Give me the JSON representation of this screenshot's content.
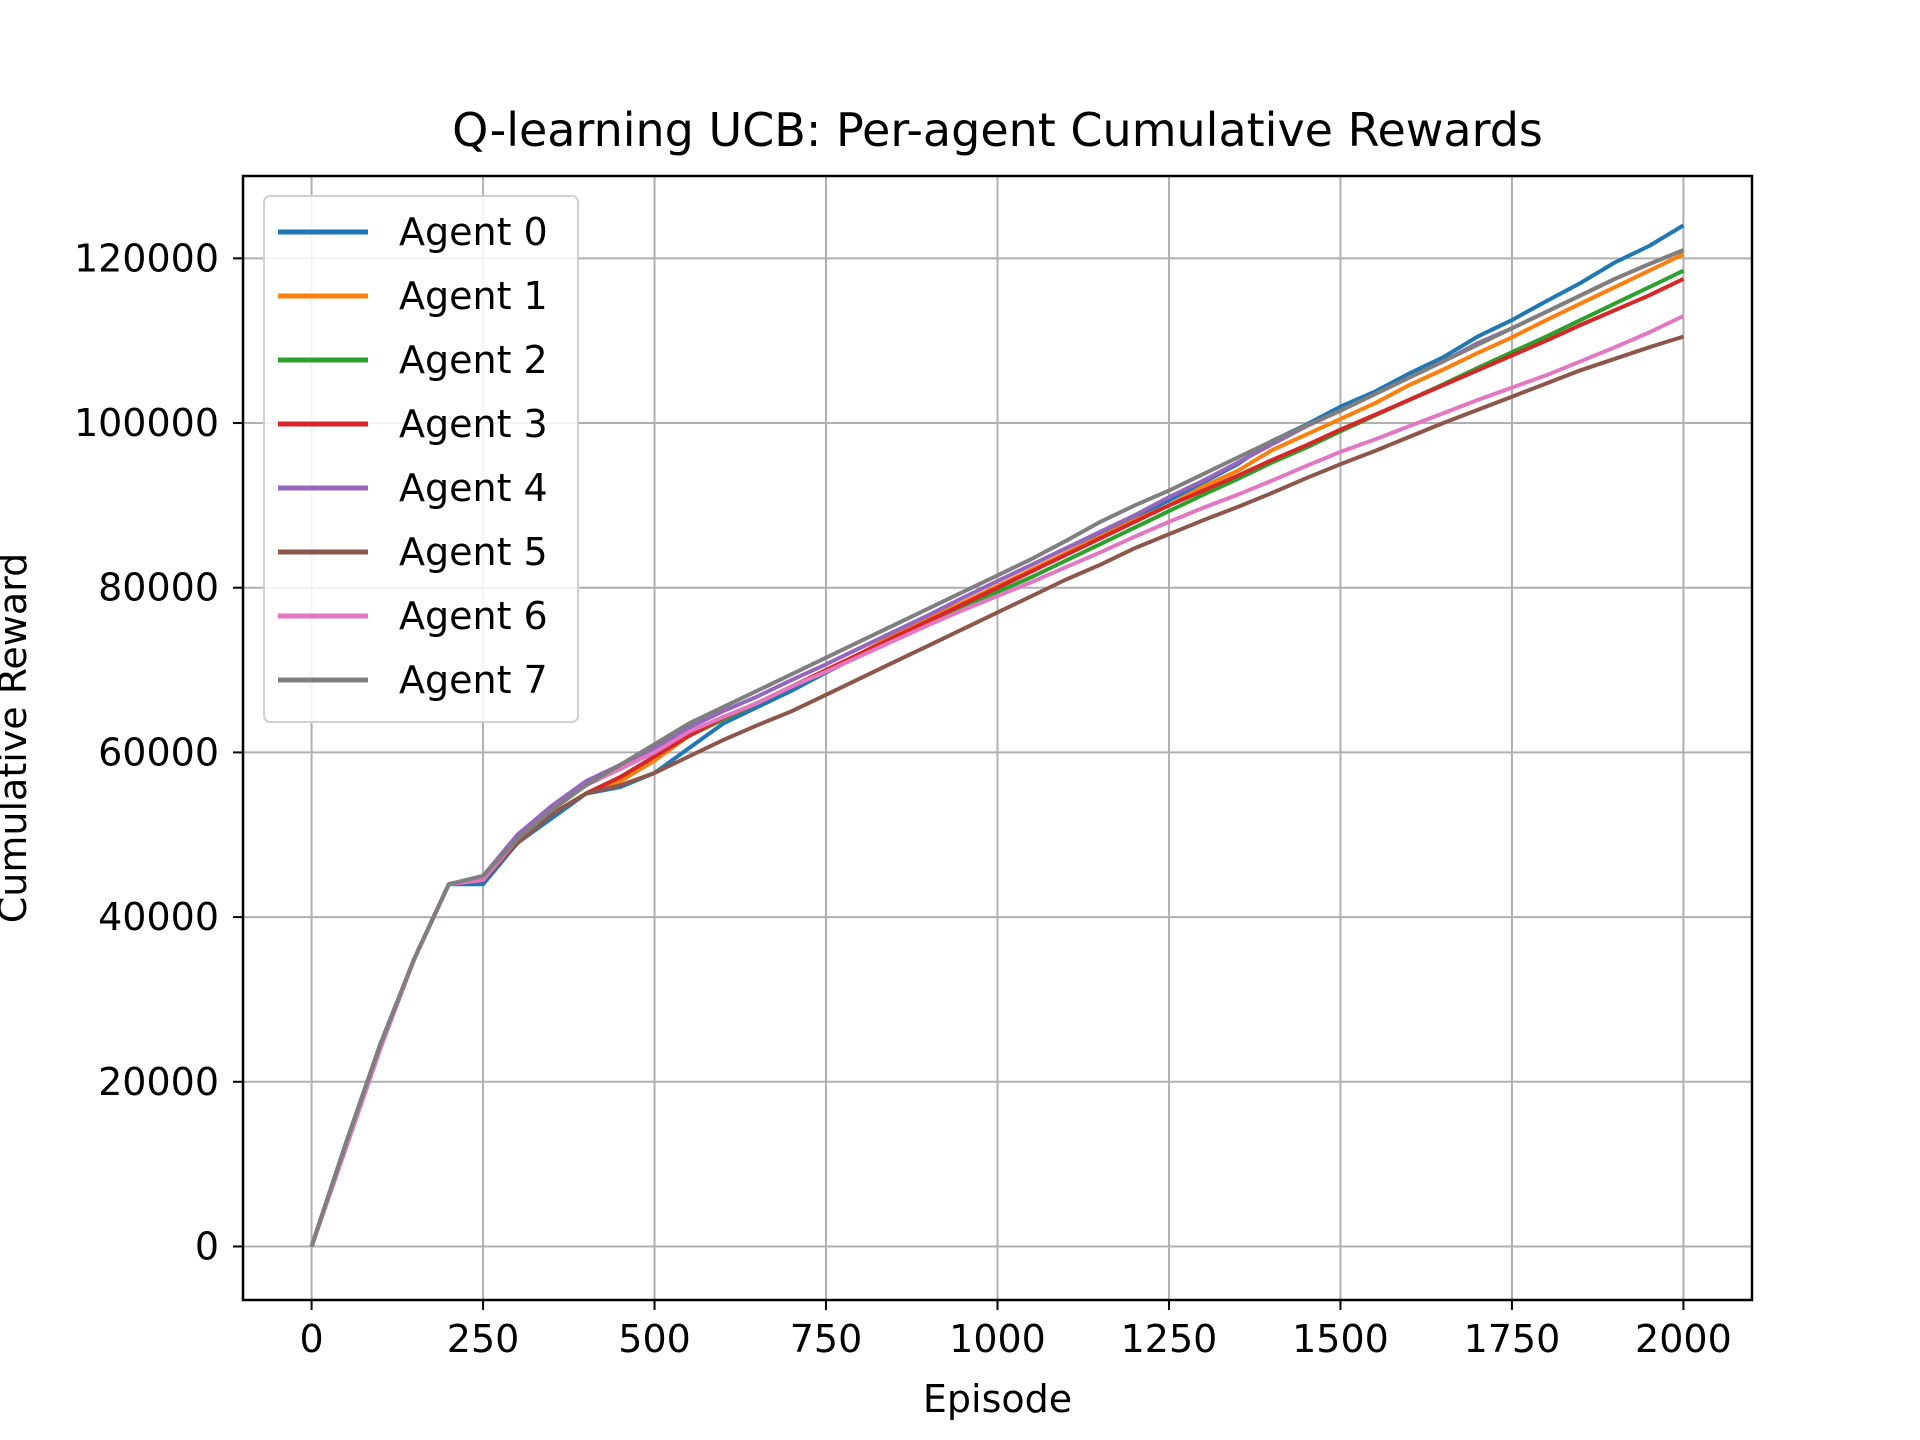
{
  "chart_data": {
    "type": "line",
    "title": "Q-learning UCB: Per-agent Cumulative Rewards",
    "xlabel": "Episode",
    "ylabel": "Cumulative Reward",
    "xlim": [
      -100,
      2100
    ],
    "ylim": [
      -6500,
      130000
    ],
    "x_ticks": [
      0,
      250,
      500,
      750,
      1000,
      1250,
      1500,
      1750,
      2000
    ],
    "x_tick_labels": [
      "0",
      "250",
      "500",
      "750",
      "1000",
      "1250",
      "1500",
      "1750",
      "2000"
    ],
    "y_ticks": [
      0,
      20000,
      40000,
      60000,
      80000,
      100000,
      120000
    ],
    "y_tick_labels": [
      "0",
      "20000",
      "40000",
      "60000",
      "80000",
      "100000",
      "120000"
    ],
    "grid": true,
    "legend_position": "top-left",
    "x": [
      0,
      50,
      100,
      150,
      200,
      250,
      300,
      350,
      400,
      450,
      500,
      550,
      600,
      650,
      700,
      750,
      800,
      850,
      900,
      950,
      1000,
      1050,
      1100,
      1150,
      1200,
      1250,
      1300,
      1350,
      1400,
      1450,
      1500,
      1550,
      1600,
      1650,
      1700,
      1750,
      1800,
      1850,
      1900,
      1950,
      2000
    ],
    "series": [
      {
        "name": "Agent 0",
        "color": "#1f77b4",
        "values": [
          0,
          12500,
          24500,
          35000,
          44000,
          44000,
          49000,
          52000,
          55000,
          55800,
          57500,
          60500,
          63500,
          65500,
          67500,
          69700,
          71800,
          74000,
          76000,
          78000,
          80000,
          82000,
          84200,
          86300,
          88500,
          90600,
          92800,
          95000,
          97800,
          99800,
          102000,
          103800,
          106000,
          108000,
          110500,
          112500,
          114800,
          117000,
          119500,
          121500,
          124000
        ]
      },
      {
        "name": "Agent 1",
        "color": "#ff7f0e",
        "values": [
          0,
          12500,
          24500,
          35000,
          44000,
          44500,
          49000,
          52500,
          55000,
          56500,
          59000,
          62000,
          64000,
          66000,
          68000,
          70000,
          72000,
          74300,
          76300,
          78200,
          80200,
          82200,
          84200,
          86200,
          88200,
          90000,
          92300,
          94200,
          96700,
          98600,
          100500,
          102400,
          104600,
          106500,
          108500,
          110400,
          112500,
          114500,
          116500,
          118500,
          120500
        ]
      },
      {
        "name": "Agent 2",
        "color": "#2ca02c",
        "values": [
          0,
          12500,
          24500,
          35000,
          44000,
          44500,
          49000,
          52500,
          55000,
          57000,
          59500,
          62000,
          64000,
          66000,
          68000,
          69900,
          71800,
          73800,
          75800,
          77800,
          79500,
          81300,
          83300,
          85300,
          87300,
          89300,
          91300,
          93200,
          95200,
          97000,
          99000,
          100900,
          102800,
          104700,
          106700,
          108600,
          110500,
          112500,
          114500,
          116500,
          118500
        ]
      },
      {
        "name": "Agent 3",
        "color": "#d62728",
        "values": [
          0,
          12000,
          24000,
          35000,
          44000,
          44500,
          49000,
          52500,
          55000,
          57000,
          59500,
          62000,
          64200,
          66000,
          68000,
          70000,
          72000,
          74000,
          76000,
          78000,
          80000,
          82000,
          84000,
          86000,
          88000,
          90000,
          91800,
          93600,
          95500,
          97300,
          99200,
          101000,
          102800,
          104600,
          106400,
          108200,
          110000,
          111900,
          113700,
          115500,
          117500
        ]
      },
      {
        "name": "Agent 4",
        "color": "#9467bd",
        "values": [
          0,
          12500,
          24500,
          35000,
          44000,
          45000,
          50000,
          53500,
          56500,
          58500,
          60500,
          63000,
          65000,
          66800,
          68800,
          70700,
          72700,
          74700,
          76700,
          78800,
          80800,
          82800,
          84800,
          86800,
          88800,
          91000,
          93000,
          95200,
          97400,
          99600,
          101500,
          103500,
          105500,
          107500,
          109700,
          111500,
          113500,
          115500,
          117500,
          119300,
          121000
        ]
      },
      {
        "name": "Agent 5",
        "color": "#8c564b",
        "values": [
          0,
          12500,
          24500,
          35000,
          44000,
          44500,
          49000,
          52500,
          55000,
          56000,
          57500,
          59500,
          61500,
          63300,
          65000,
          67000,
          69000,
          71000,
          73000,
          75000,
          77000,
          79000,
          81000,
          82800,
          84800,
          86500,
          88200,
          89800,
          91500,
          93300,
          95000,
          96600,
          98300,
          100000,
          101600,
          103200,
          104800,
          106400,
          107800,
          109200,
          110500
        ]
      },
      {
        "name": "Agent 6",
        "color": "#e377c2",
        "values": [
          0,
          12000,
          24000,
          35000,
          44000,
          44500,
          49500,
          53000,
          56000,
          58000,
          60000,
          62500,
          64300,
          66000,
          68000,
          69800,
          71700,
          73600,
          75500,
          77300,
          79000,
          80700,
          82500,
          84300,
          86200,
          88000,
          89700,
          91300,
          93000,
          94800,
          96500,
          98000,
          99600,
          101200,
          102800,
          104300,
          105800,
          107500,
          109200,
          111000,
          113000
        ]
      },
      {
        "name": "Agent 7",
        "color": "#7f7f7f",
        "values": [
          0,
          12500,
          24500,
          35000,
          44000,
          45000,
          49500,
          53000,
          56000,
          58500,
          61000,
          63500,
          65500,
          67500,
          69500,
          71500,
          73500,
          75500,
          77500,
          79500,
          81500,
          83500,
          85700,
          88000,
          90000,
          91800,
          93800,
          95800,
          97800,
          99700,
          101500,
          103500,
          105500,
          107500,
          109500,
          111500,
          113500,
          115500,
          117500,
          119300,
          121000
        ]
      }
    ]
  }
}
